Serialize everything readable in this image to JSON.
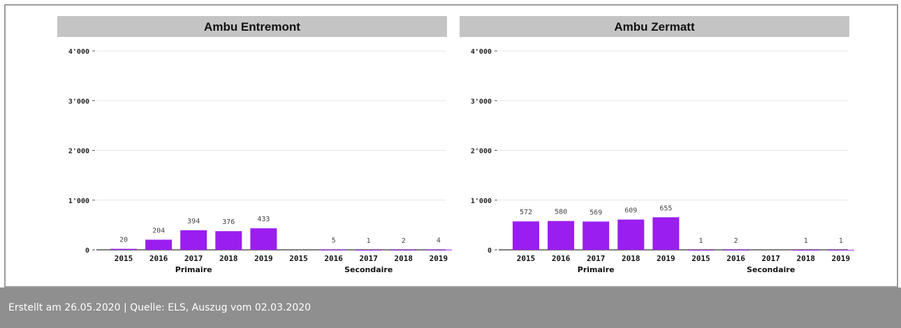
{
  "footer": {
    "text": "Erstellt am 26.05.2020 | Quelle: ELS, Auszug vom 02.03.2020"
  },
  "colors": {
    "bar": "#9a1ef0",
    "header": "#c4c4c4",
    "grid": "#e6e6e6",
    "axis": "#555555"
  },
  "chart_data": [
    {
      "type": "bar",
      "title": "Ambu Entremont",
      "ylim": [
        0,
        4000
      ],
      "yticks": [
        0,
        1000,
        2000,
        3000,
        4000
      ],
      "ytick_labels": [
        "0",
        "1'000",
        "2'000",
        "3'000",
        "4'000"
      ],
      "grid": true,
      "categories": [
        "2015",
        "2016",
        "2017",
        "2018",
        "2019",
        "2015",
        "2016",
        "2017",
        "2018",
        "2019"
      ],
      "groups": [
        "Primaire",
        "Secondaire"
      ],
      "values": [
        20,
        204,
        394,
        376,
        433,
        0,
        5,
        1,
        2,
        4
      ],
      "value_labels": [
        "20",
        "204",
        "394",
        "376",
        "433",
        "",
        "5",
        "1",
        "2",
        "4"
      ]
    },
    {
      "type": "bar",
      "title": "Ambu Zermatt",
      "ylim": [
        0,
        4000
      ],
      "yticks": [
        0,
        1000,
        2000,
        3000,
        4000
      ],
      "ytick_labels": [
        "0",
        "1'000",
        "2'000",
        "3'000",
        "4'000"
      ],
      "grid": true,
      "categories": [
        "2015",
        "2016",
        "2017",
        "2018",
        "2019",
        "2015",
        "2016",
        "2017",
        "2018",
        "2019"
      ],
      "groups": [
        "Primaire",
        "Secondaire"
      ],
      "values": [
        572,
        580,
        569,
        609,
        655,
        1,
        2,
        0,
        1,
        1
      ],
      "value_labels": [
        "572",
        "580",
        "569",
        "609",
        "655",
        "1",
        "2",
        "",
        "1",
        "1"
      ]
    }
  ]
}
